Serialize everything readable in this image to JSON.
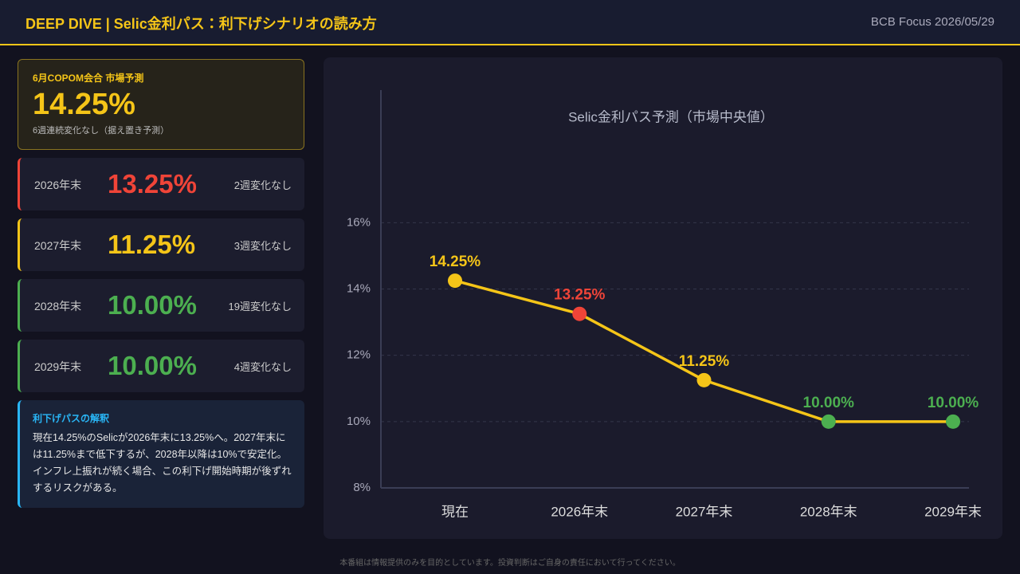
{
  "header": {
    "title": "DEEP DIVE | Selic金利パス：利下げシナリオの読み方",
    "source": "BCB Focus 2026/05/29"
  },
  "highlight": {
    "label": "6月COPOM会合 市場予測",
    "rate": "14.25%",
    "note": "6週連続変化なし（据え置き予測）"
  },
  "cards": [
    {
      "year": "2026年末",
      "rate": "13.25%",
      "note": "2週変化なし",
      "color": "#f04438"
    },
    {
      "year": "2027年末",
      "rate": "11.25%",
      "note": "3週変化なし",
      "color": "#f5c518"
    },
    {
      "year": "2028年末",
      "rate": "10.00%",
      "note": "19週変化なし",
      "color": "#4caf50"
    },
    {
      "year": "2029年末",
      "rate": "10.00%",
      "note": "4週変化なし",
      "color": "#4caf50"
    }
  ],
  "explanation": {
    "title": "利下げパスの解釈",
    "text": "現在14.25%のSelicが2026年末に13.25%へ。2027年末には11.25%まで低下するが、2028年以降は10%で安定化。インフレ上振れが続く場合、この利下げ開始時期が後ずれするリスクがある。"
  },
  "chart_data": {
    "type": "line",
    "title": "Selic金利パス予測（市場中央値）",
    "categories": [
      "現在",
      "2026年末",
      "2027年末",
      "2028年末",
      "2029年末"
    ],
    "values": [
      14.25,
      13.25,
      11.25,
      10.0,
      10.0
    ],
    "value_labels": [
      "14.25%",
      "13.25%",
      "11.25%",
      "10.00%",
      "10.00%"
    ],
    "color": "#f5c518",
    "point_colors": [
      "#f5c518",
      "#f04438",
      "#f5c518",
      "#4caf50",
      "#4caf50"
    ],
    "ylim": [
      8,
      20
    ],
    "yticks": [
      {
        "value": 8,
        "label": "8%"
      },
      {
        "value": 10,
        "label": "10%"
      },
      {
        "value": 12,
        "label": "12%"
      },
      {
        "value": 14,
        "label": "14%"
      },
      {
        "value": 16,
        "label": "16%"
      }
    ],
    "grid": true
  },
  "footer": "本番組は情報提供のみを目的としています。投資判断はご自身の責任において行ってください。"
}
